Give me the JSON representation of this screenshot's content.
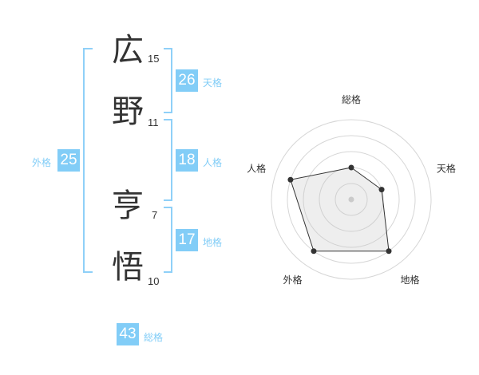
{
  "chars": [
    {
      "char": "広",
      "strokes": "15"
    },
    {
      "char": "野",
      "strokes": "11"
    },
    {
      "char": "亨",
      "strokes": "7"
    },
    {
      "char": "悟",
      "strokes": "10"
    }
  ],
  "results": {
    "tenkaku": {
      "value": "26",
      "label": "天格"
    },
    "jinkaku": {
      "value": "18",
      "label": "人格"
    },
    "chikaku": {
      "value": "17",
      "label": "地格"
    },
    "gaikaku": {
      "value": "25",
      "label": "外格"
    },
    "soukaku": {
      "value": "43",
      "label": "総格"
    }
  },
  "accent_color": "#82cdf7",
  "chart_data": {
    "type": "radar",
    "axes": [
      "総格",
      "天格",
      "地格",
      "外格",
      "人格"
    ],
    "values": [
      2,
      2,
      4,
      4,
      4
    ],
    "range": [
      0,
      5
    ],
    "grid_rings": 5
  }
}
